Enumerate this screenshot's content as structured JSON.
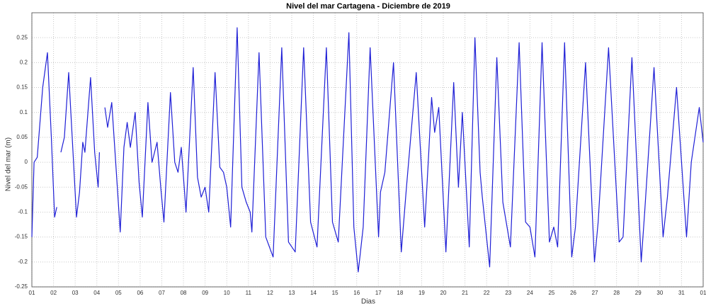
{
  "chart_data": {
    "type": "line",
    "title": "Nivel del mar Cartagena - Diciembre de 2019",
    "xlabel": "Dias",
    "ylabel": "Nivel del mar (m)",
    "xlim": [
      1,
      32
    ],
    "ylim": [
      -0.25,
      0.3
    ],
    "grid": true,
    "xticks": [
      {
        "value": 1,
        "label": "01"
      },
      {
        "value": 2,
        "label": "02"
      },
      {
        "value": 3,
        "label": "03"
      },
      {
        "value": 4,
        "label": "04"
      },
      {
        "value": 5,
        "label": "05"
      },
      {
        "value": 6,
        "label": "06"
      },
      {
        "value": 7,
        "label": "07"
      },
      {
        "value": 8,
        "label": "08"
      },
      {
        "value": 9,
        "label": "09"
      },
      {
        "value": 10,
        "label": "10"
      },
      {
        "value": 11,
        "label": "11"
      },
      {
        "value": 12,
        "label": "12"
      },
      {
        "value": 13,
        "label": "13"
      },
      {
        "value": 14,
        "label": "14"
      },
      {
        "value": 15,
        "label": "15"
      },
      {
        "value": 16,
        "label": "16"
      },
      {
        "value": 17,
        "label": "17"
      },
      {
        "value": 18,
        "label": "18"
      },
      {
        "value": 19,
        "label": "19"
      },
      {
        "value": 20,
        "label": "20"
      },
      {
        "value": 21,
        "label": "21"
      },
      {
        "value": 22,
        "label": "22"
      },
      {
        "value": 23,
        "label": "23"
      },
      {
        "value": 24,
        "label": "24"
      },
      {
        "value": 25,
        "label": "25"
      },
      {
        "value": 26,
        "label": "26"
      },
      {
        "value": 27,
        "label": "27"
      },
      {
        "value": 28,
        "label": "28"
      },
      {
        "value": 29,
        "label": "29"
      },
      {
        "value": 30,
        "label": "30"
      },
      {
        "value": 31,
        "label": "31"
      },
      {
        "value": 32,
        "label": "01"
      }
    ],
    "yticks": [
      -0.25,
      -0.2,
      -0.15,
      -0.1,
      -0.05,
      0,
      0.05,
      0.1,
      0.15,
      0.2,
      0.25
    ],
    "x": [
      1.0,
      1.1,
      1.25,
      1.5,
      1.72,
      1.9,
      2.05,
      2.15,
      2.25,
      2.34,
      2.5,
      2.7,
      2.9,
      3.06,
      3.2,
      3.35,
      3.45,
      3.71,
      3.9,
      4.06,
      4.12,
      4.25,
      4.37,
      4.5,
      4.69,
      4.9,
      5.08,
      5.25,
      5.4,
      5.55,
      5.77,
      5.95,
      6.1,
      6.36,
      6.55,
      6.78,
      6.95,
      7.1,
      7.4,
      7.6,
      7.75,
      7.9,
      8.12,
      8.45,
      8.65,
      8.82,
      9.0,
      9.17,
      9.46,
      9.68,
      9.85,
      10.0,
      10.18,
      10.48,
      10.7,
      10.9,
      11.08,
      11.16,
      11.49,
      11.8,
      12.14,
      12.54,
      12.85,
      13.16,
      13.55,
      13.87,
      14.17,
      14.6,
      14.88,
      15.15,
      15.64,
      15.87,
      16.07,
      16.3,
      16.62,
      17.01,
      17.1,
      17.3,
      17.7,
      18.06,
      18.3,
      18.75,
      19.14,
      19.33,
      19.46,
      19.6,
      19.79,
      20.12,
      20.48,
      20.7,
      20.88,
      21.2,
      21.46,
      21.7,
      21.8,
      22.14,
      22.47,
      22.75,
      23.1,
      23.5,
      23.8,
      24.0,
      24.23,
      24.56,
      24.9,
      25.1,
      25.28,
      25.6,
      25.93,
      26.1,
      26.57,
      26.98,
      27.15,
      27.63,
      28.12,
      28.3,
      28.71,
      29.14,
      29.3,
      29.73,
      30.15,
      30.35,
      30.77,
      31.23,
      31.45,
      31.82,
      32.0
    ],
    "series": [
      {
        "color": "#1f1fd6",
        "values": [
          -0.15,
          0.0,
          0.01,
          0.15,
          0.22,
          0.05,
          -0.11,
          -0.09,
          null,
          0.02,
          0.05,
          0.18,
          0.02,
          -0.11,
          -0.06,
          0.04,
          0.02,
          0.17,
          0.02,
          -0.05,
          0.02,
          null,
          0.11,
          0.07,
          0.12,
          -0.02,
          -0.14,
          0.03,
          0.08,
          0.03,
          0.1,
          -0.04,
          -0.11,
          0.12,
          0.0,
          0.04,
          -0.05,
          -0.12,
          0.14,
          0.0,
          -0.02,
          0.03,
          -0.1,
          0.19,
          -0.03,
          -0.07,
          -0.05,
          -0.1,
          0.18,
          -0.01,
          -0.02,
          -0.05,
          -0.13,
          0.27,
          -0.05,
          -0.08,
          -0.1,
          -0.14,
          0.22,
          -0.15,
          -0.19,
          0.23,
          -0.16,
          -0.18,
          0.23,
          -0.12,
          -0.17,
          0.23,
          -0.12,
          -0.16,
          0.26,
          -0.13,
          -0.22,
          -0.13,
          0.23,
          -0.15,
          -0.06,
          -0.02,
          0.2,
          -0.18,
          -0.05,
          0.18,
          -0.13,
          0.02,
          0.13,
          0.06,
          0.11,
          -0.18,
          0.16,
          -0.05,
          0.1,
          -0.17,
          0.25,
          -0.02,
          -0.07,
          -0.21,
          0.21,
          -0.08,
          -0.17,
          0.24,
          -0.12,
          -0.13,
          -0.19,
          0.24,
          -0.16,
          -0.13,
          -0.17,
          0.24,
          -0.19,
          -0.13,
          0.2,
          -0.2,
          -0.12,
          0.23,
          -0.16,
          -0.15,
          0.21,
          -0.2,
          -0.1,
          0.19,
          -0.15,
          -0.07,
          0.15,
          -0.15,
          0.0,
          0.11,
          0.04
        ]
      }
    ]
  }
}
